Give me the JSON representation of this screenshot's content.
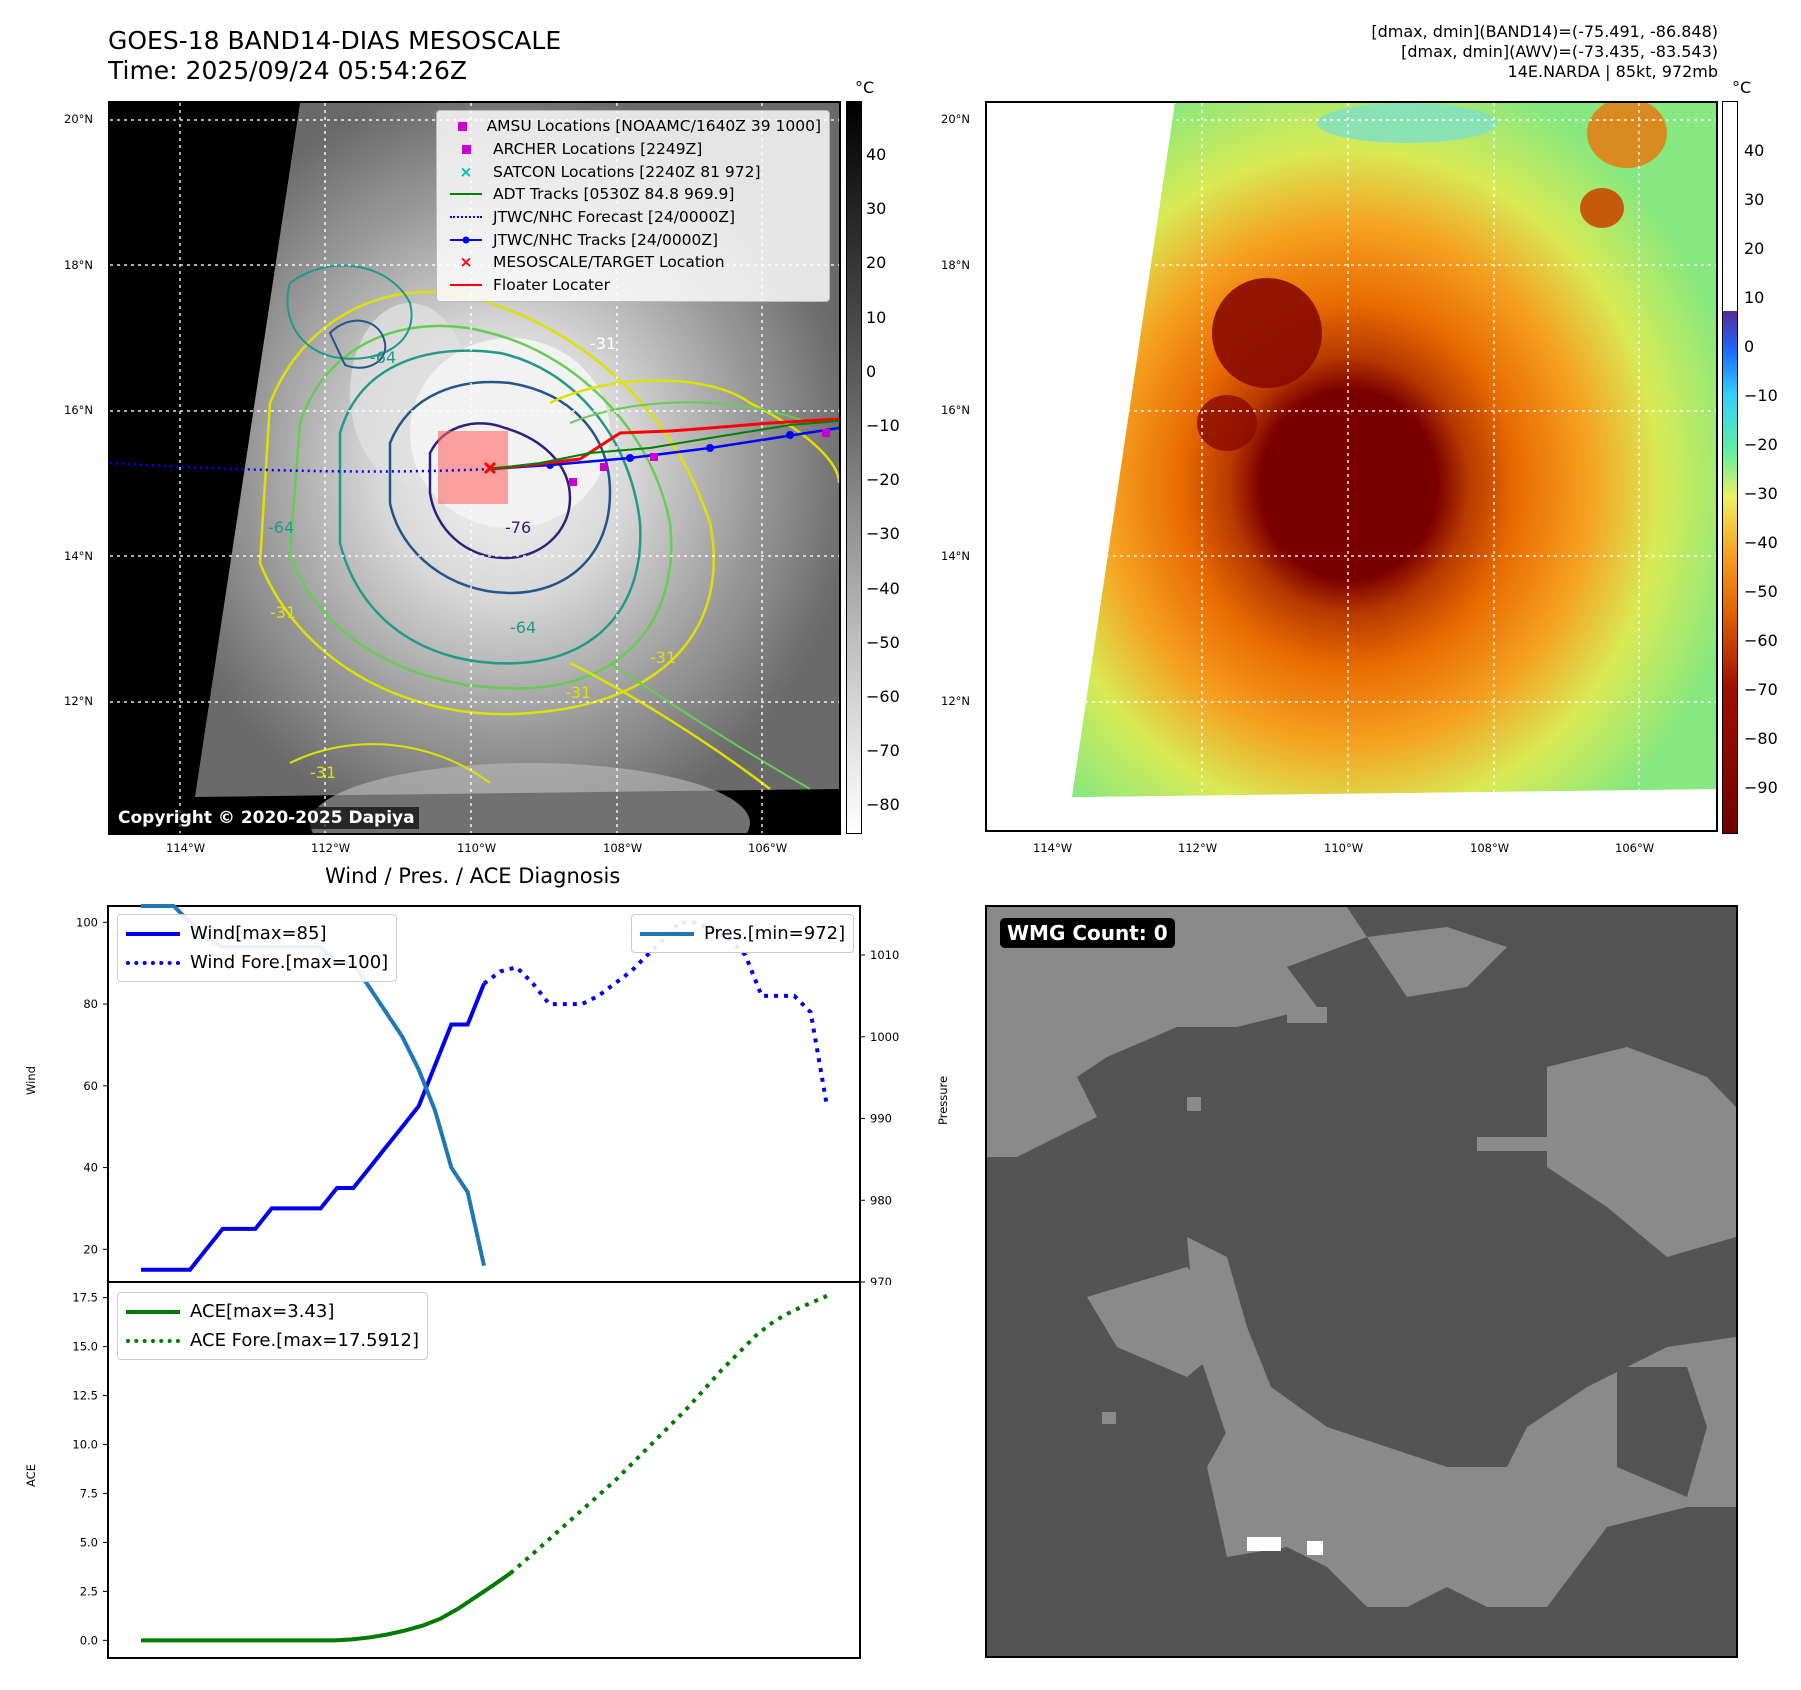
{
  "header": {
    "line1": "GOES-18 BAND14-DIAS MESOSCALE",
    "line2": "Time: 2025/09/24 05:54:26Z",
    "right_line1": "[dmax, dmin](BAND14)=(-75.491, -86.848)",
    "right_line2": "[dmax, dmin](AWV)=(-73.435, -83.543)",
    "right_line3": "14E.NARDA | 85kt, 972mb"
  },
  "maps": {
    "lat_ticks": [
      "20°N",
      "18°N",
      "16°N",
      "14°N",
      "12°N"
    ],
    "lon_ticks": [
      "114°W",
      "112°W",
      "110°W",
      "108°W",
      "106°W"
    ],
    "contour_labels": [
      "-31",
      "-64",
      "-76",
      "-64",
      "-31",
      "-31",
      "-64",
      "-31",
      "-31"
    ],
    "copyright": "Copyright © 2020-2025 Dapiya",
    "colorbar_unit": "°C",
    "colorbar1_ticks": [
      "40",
      "30",
      "20",
      "10",
      "0",
      "−10",
      "−20",
      "−30",
      "−40",
      "−50",
      "−60",
      "−70",
      "−80"
    ],
    "colorbar2_ticks": [
      "40",
      "30",
      "20",
      "10",
      "0",
      "−10",
      "−20",
      "−30",
      "−40",
      "−50",
      "−60",
      "−70",
      "−80",
      "−90"
    ],
    "legend": [
      {
        "label": "AMSU Locations [NOAAMC/1640Z 39 1000]",
        "color": "#cc00cc",
        "marker": "square"
      },
      {
        "label": "ARCHER Locations [2249Z]",
        "color": "#cc00cc",
        "marker": "square"
      },
      {
        "label": "SATCON Locations [2240Z 81 972]",
        "color": "#00bbbb",
        "marker": "x"
      },
      {
        "label": "ADT Tracks [0530Z 84.8 969.9]",
        "color": "#008000",
        "marker": "line"
      },
      {
        "label": "JTWC/NHC Forecast [24/0000Z]",
        "color": "#0000ff",
        "marker": "dotted"
      },
      {
        "label": "JTWC/NHC Tracks [24/0000Z]",
        "color": "#0000ff",
        "marker": "line-dot"
      },
      {
        "label": "MESOSCALE/TARGET Location",
        "color": "#ff0000",
        "marker": "x"
      },
      {
        "label": "Floater Locater",
        "color": "#ff0000",
        "marker": "line"
      }
    ]
  },
  "chart_data": [
    {
      "type": "line",
      "title": "Wind / Pres. / ACE Diagnosis",
      "ylabel": "Wind",
      "ylabel2": "Pressure",
      "yticks": [
        "100",
        "80",
        "60",
        "40",
        "20"
      ],
      "y2ticks": [
        "1010",
        "1000",
        "990",
        "980",
        "970"
      ],
      "ylim": [
        12,
        104
      ],
      "y2lim": [
        970,
        1016
      ],
      "series": [
        {
          "name": "Wind[max=85]",
          "axis": "left",
          "color": "#0000ee",
          "style": "solid",
          "values": [
            15,
            15,
            15,
            15,
            20,
            25,
            25,
            25,
            30,
            30,
            30,
            30,
            35,
            35,
            40,
            45,
            50,
            55,
            65,
            75,
            75,
            85
          ]
        },
        {
          "name": "Wind Fore.[max=100]",
          "axis": "left",
          "color": "#0000ee",
          "style": "dotted",
          "x_start": 21,
          "values": [
            85,
            88,
            89,
            85,
            80,
            80,
            80,
            82,
            85,
            88,
            92,
            96,
            100,
            100,
            98,
            96,
            92,
            82,
            82,
            82,
            78,
            55
          ]
        },
        {
          "name": "Pres.[min=972]",
          "axis": "right",
          "color": "#1f77b4",
          "style": "solid",
          "values": [
            1016,
            1016,
            1016,
            1014,
            1012,
            1011,
            1011,
            1011,
            1011,
            1011,
            1011,
            1011,
            1009,
            1009,
            1006,
            1003,
            1000,
            996,
            991,
            984,
            981,
            972
          ]
        }
      ]
    },
    {
      "type": "line",
      "ylabel": "ACE",
      "yticks": [
        "17.5",
        "15.0",
        "12.5",
        "10.0",
        "7.5",
        "5.0",
        "2.5",
        "0.0"
      ],
      "ylim": [
        -0.9,
        18.3
      ],
      "series": [
        {
          "name": "ACE[max=3.43]",
          "color": "#007a00",
          "style": "solid",
          "values": [
            0,
            0,
            0,
            0,
            0,
            0,
            0,
            0,
            0,
            0,
            0,
            0,
            0.05,
            0.15,
            0.3,
            0.5,
            0.75,
            1.1,
            1.6,
            2.2,
            2.8,
            3.43
          ]
        },
        {
          "name": "ACE Fore.[max=17.5912]",
          "color": "#007a00",
          "style": "dotted",
          "x_start": 21,
          "values": [
            3.43,
            4.2,
            5.0,
            5.8,
            6.6,
            7.4,
            8.2,
            9.1,
            10.0,
            10.9,
            11.8,
            12.8,
            13.8,
            14.7,
            15.6,
            16.3,
            16.8,
            17.2,
            17.5912
          ]
        }
      ]
    }
  ],
  "wmg": {
    "label": "WMG Count: 0"
  }
}
